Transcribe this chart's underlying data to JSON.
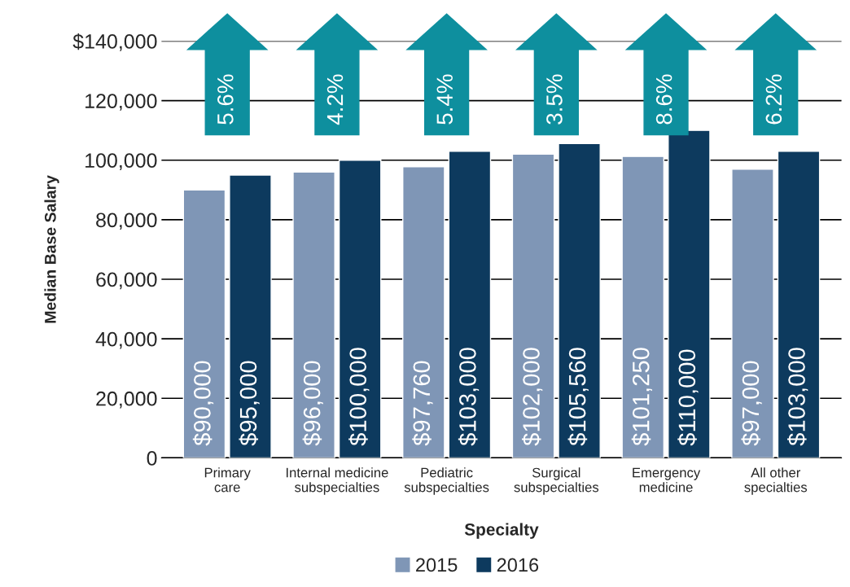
{
  "chart_data": {
    "type": "bar",
    "xlabel": "Specialty",
    "ylabel": "Median Base Salary",
    "categories": [
      "Primary\ncare",
      "Internal medicine\nsubspecialties",
      "Pediatric\nsubspecialties",
      "Surgical\nsubspecialties",
      "Emergency\nmedicine",
      "All other\nspecialties"
    ],
    "series": [
      {
        "name": "2015",
        "color": "#7f96b6",
        "values": [
          90000,
          96000,
          97760,
          102000,
          101250,
          97000
        ],
        "value_labels": [
          "$90,000",
          "$96,000",
          "$97,760",
          "$102,000",
          "$101,250",
          "$97,000"
        ]
      },
      {
        "name": "2016",
        "color": "#0d3a5e",
        "values": [
          95000,
          100000,
          103000,
          105560,
          110000,
          103000
        ],
        "value_labels": [
          "$95,000",
          "$100,000",
          "$103,000",
          "$105,560",
          "$110,000",
          "$103,000"
        ]
      }
    ],
    "ylim": [
      0,
      140000
    ],
    "yticks": [
      0,
      {
        "value": 20000,
        "label": "20,000"
      },
      {
        "value": 40000,
        "label": "40,000"
      },
      {
        "value": 60000,
        "label": "60,000"
      },
      {
        "value": 80000,
        "label": "80,000"
      },
      {
        "value": 100000,
        "label": "100,000"
      },
      {
        "value": 120000,
        "label": "120,000"
      },
      {
        "value": 140000,
        "label": "$140,000"
      }
    ],
    "grid": "y",
    "legend": "bottom",
    "annotations": [
      "5.6%",
      "4.2%",
      "5.4%",
      "3.5%",
      "8.6%",
      "6.2%"
    ]
  }
}
